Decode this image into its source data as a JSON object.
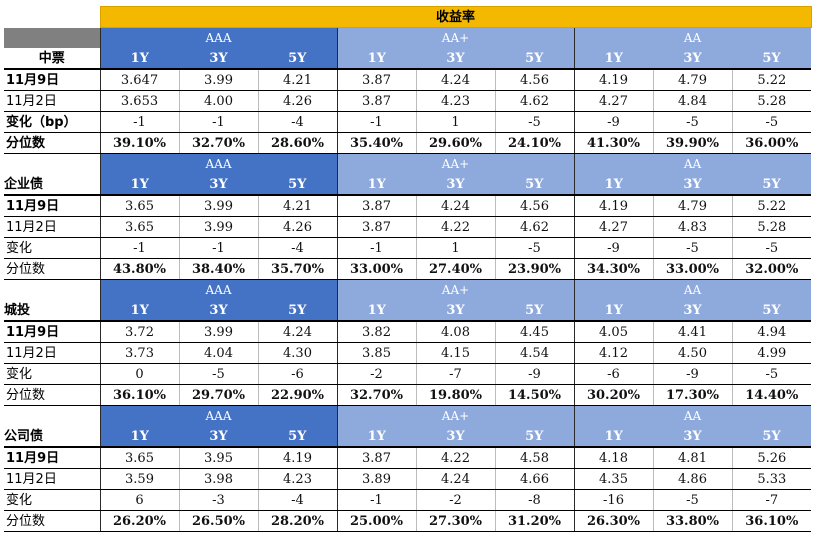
{
  "title": "收益率",
  "grades": [
    "AAA",
    "AA+",
    "AA"
  ],
  "tenors": [
    "1Y",
    "3Y",
    "5Y"
  ],
  "sections": [
    {
      "name": "中票",
      "rows": [
        {
          "label": "11月9日",
          "bold": true,
          "values": [
            "3.647",
            "3.99",
            "4.21",
            "3.87",
            "4.24",
            "4.56",
            "4.19",
            "4.79",
            "5.22"
          ]
        },
        {
          "label": "11月2日",
          "bold": false,
          "values": [
            "3.653",
            "4.00",
            "4.26",
            "3.87",
            "4.23",
            "4.62",
            "4.27",
            "4.84",
            "5.28"
          ]
        },
        {
          "label": "变化（bp）",
          "bold": true,
          "values": [
            "-1",
            "-1",
            "-4",
            "-1",
            "1",
            "-5",
            "-9",
            "-5",
            "-5"
          ]
        },
        {
          "label": "分位数",
          "bold": true,
          "values": [
            "39.10%",
            "32.70%",
            "28.60%",
            "35.40%",
            "29.60%",
            "24.10%",
            "41.30%",
            "39.90%",
            "36.00%"
          ]
        }
      ]
    },
    {
      "name": "企业债",
      "rows": [
        {
          "label": "11月9日",
          "bold": true,
          "values": [
            "3.65",
            "3.99",
            "4.21",
            "3.87",
            "4.24",
            "4.56",
            "4.19",
            "4.79",
            "5.22"
          ]
        },
        {
          "label": "11月2日",
          "bold": false,
          "values": [
            "3.65",
            "3.99",
            "4.26",
            "3.87",
            "4.22",
            "4.62",
            "4.27",
            "4.83",
            "5.28"
          ]
        },
        {
          "label": "变化",
          "bold": false,
          "values": [
            "-1",
            "-1",
            "-4",
            "-1",
            "1",
            "-5",
            "-9",
            "-5",
            "-5"
          ]
        },
        {
          "label": "分位数",
          "bold": false,
          "values": [
            "43.80%",
            "38.40%",
            "35.70%",
            "33.00%",
            "27.40%",
            "23.90%",
            "34.30%",
            "33.00%",
            "32.00%"
          ]
        }
      ]
    },
    {
      "name": "城投",
      "rows": [
        {
          "label": "11月9日",
          "bold": true,
          "values": [
            "3.72",
            "3.99",
            "4.24",
            "3.82",
            "4.08",
            "4.45",
            "4.05",
            "4.41",
            "4.94"
          ]
        },
        {
          "label": "11月2日",
          "bold": false,
          "values": [
            "3.73",
            "4.04",
            "4.30",
            "3.85",
            "4.15",
            "4.54",
            "4.12",
            "4.50",
            "4.99"
          ]
        },
        {
          "label": "变化",
          "bold": false,
          "values": [
            "0",
            "-5",
            "-6",
            "-2",
            "-7",
            "-9",
            "-6",
            "-9",
            "-5"
          ]
        },
        {
          "label": "分位数",
          "bold": false,
          "values": [
            "36.10%",
            "29.70%",
            "22.90%",
            "32.70%",
            "19.80%",
            "14.50%",
            "30.20%",
            "17.30%",
            "14.40%"
          ]
        }
      ]
    },
    {
      "name": "公司债",
      "rows": [
        {
          "label": "11月9日",
          "bold": true,
          "values": [
            "3.65",
            "3.95",
            "4.19",
            "3.87",
            "4.22",
            "4.58",
            "4.18",
            "4.81",
            "5.26"
          ]
        },
        {
          "label": "11月2日",
          "bold": false,
          "values": [
            "3.59",
            "3.98",
            "4.23",
            "3.89",
            "4.24",
            "4.66",
            "4.35",
            "4.86",
            "5.33"
          ]
        },
        {
          "label": "变化",
          "bold": false,
          "values": [
            "6",
            "-3",
            "-4",
            "-1",
            "-2",
            "-8",
            "-16",
            "-5",
            "-7"
          ]
        },
        {
          "label": "分位数",
          "bold": false,
          "values": [
            "26.20%",
            "26.50%",
            "28.20%",
            "25.00%",
            "27.30%",
            "31.20%",
            "26.30%",
            "33.80%",
            "36.10%"
          ]
        }
      ]
    }
  ]
}
